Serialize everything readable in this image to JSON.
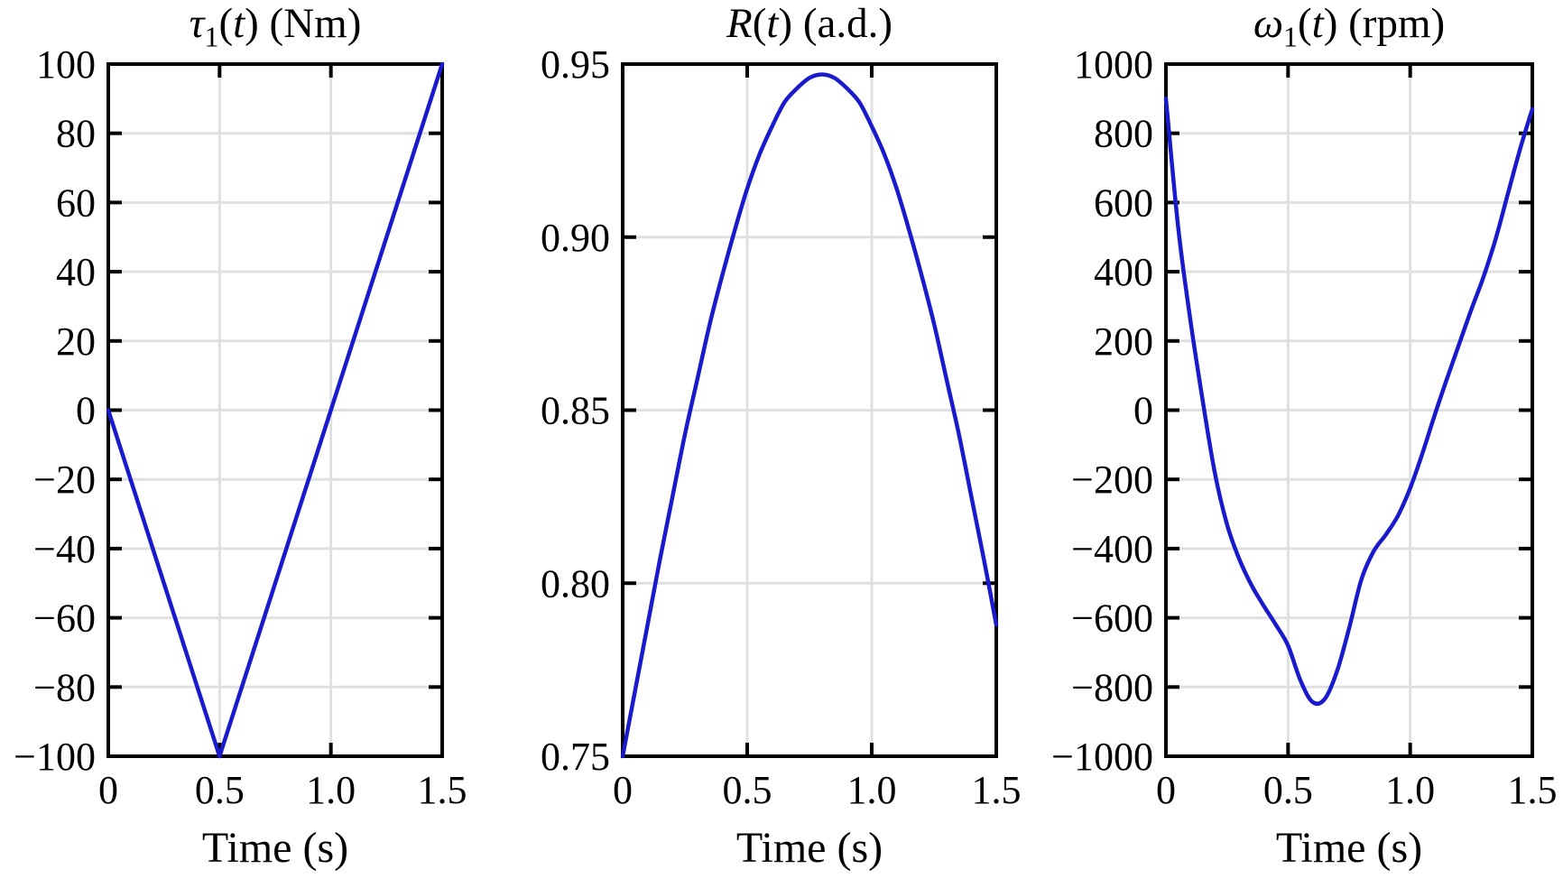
{
  "colors": {
    "line": "#1a1acd",
    "grid": "#e0e0e0",
    "axis": "#000000",
    "text": "#000000",
    "background": "#ffffff"
  },
  "panels": [
    {
      "xlabel": "Time (s)",
      "title_text": "τ1(t) (Nm)",
      "title_parts": [
        {
          "t": "τ",
          "s": "i"
        },
        {
          "t": "1",
          "s": "sub"
        },
        {
          "t": "(",
          "s": "n"
        },
        {
          "t": "t",
          "s": "i"
        },
        {
          "t": ") (Nm)",
          "s": "n"
        }
      ]
    },
    {
      "xlabel": "Time (s)",
      "title_text": "R(t) (a.d.)",
      "title_parts": [
        {
          "t": "R",
          "s": "i"
        },
        {
          "t": "(",
          "s": "n"
        },
        {
          "t": "t",
          "s": "i"
        },
        {
          "t": ") (a.d.)",
          "s": "n"
        }
      ]
    },
    {
      "xlabel": "Time (s)",
      "title_text": "ω1(t) (rpm)",
      "title_parts": [
        {
          "t": "ω",
          "s": "i"
        },
        {
          "t": "1",
          "s": "sub"
        },
        {
          "t": "(",
          "s": "n"
        },
        {
          "t": "t",
          "s": "i"
        },
        {
          "t": ") (rpm)",
          "s": "n"
        }
      ]
    }
  ],
  "chart_data": [
    {
      "type": "line",
      "name": "tau1",
      "title": "τ1(t) (Nm)",
      "xlabel": "Time (s)",
      "ylabel": "",
      "xlim": [
        0,
        1.5
      ],
      "ylim": [
        -100,
        100
      ],
      "grid": true,
      "legend_position": "none",
      "smooth": false,
      "xticks": {
        "values": [
          0,
          0.5,
          1.0,
          1.5
        ],
        "labels": [
          "0",
          "0.5",
          "1.0",
          "1.5"
        ]
      },
      "yticks": {
        "values": [
          100,
          80,
          60,
          40,
          20,
          0,
          -20,
          -40,
          -60,
          -80,
          -100
        ],
        "labels": [
          "100",
          "80",
          "60",
          "40",
          "20",
          "0",
          "−20",
          "−40",
          "−60",
          "−80",
          "−100"
        ]
      },
      "x": [
        0,
        0.5,
        1.5
      ],
      "y": [
        0,
        -100,
        100
      ]
    },
    {
      "type": "line",
      "name": "R",
      "title": "R(t) (a.d.)",
      "xlabel": "Time (s)",
      "ylabel": "",
      "xlim": [
        0,
        1.5
      ],
      "ylim": [
        0.75,
        0.95
      ],
      "grid": true,
      "legend_position": "none",
      "smooth": true,
      "xticks": {
        "values": [
          0,
          0.5,
          1.0,
          1.5
        ],
        "labels": [
          "0",
          "0.5",
          "1.0",
          "1.5"
        ]
      },
      "yticks": {
        "values": [
          0.95,
          0.9,
          0.85,
          0.8,
          0.75
        ],
        "labels": [
          "0.95",
          "0.90",
          "0.85",
          "0.80",
          "0.75"
        ]
      },
      "x": [
        0,
        0.05,
        0.1,
        0.15,
        0.2,
        0.25,
        0.3,
        0.35,
        0.4,
        0.45,
        0.5,
        0.55,
        0.6,
        0.65,
        0.7,
        0.75,
        0.8,
        0.85,
        0.9,
        0.95,
        1.0,
        1.05,
        1.1,
        1.15,
        1.2,
        1.25,
        1.3,
        1.35,
        1.4,
        1.45,
        1.5
      ],
      "y": [
        0.75,
        0.769,
        0.788,
        0.807,
        0.825,
        0.843,
        0.859,
        0.875,
        0.889,
        0.902,
        0.914,
        0.924,
        0.932,
        0.939,
        0.943,
        0.946,
        0.947,
        0.946,
        0.943,
        0.939,
        0.932,
        0.924,
        0.914,
        0.902,
        0.889,
        0.875,
        0.859,
        0.843,
        0.825,
        0.807,
        0.788
      ]
    },
    {
      "type": "line",
      "name": "omega1",
      "title": "ω1(t) (rpm)",
      "xlabel": "Time (s)",
      "ylabel": "",
      "xlim": [
        0,
        1.5
      ],
      "ylim": [
        -1000,
        1000
      ],
      "grid": true,
      "legend_position": "none",
      "smooth": true,
      "xticks": {
        "values": [
          0,
          0.5,
          1.0,
          1.5
        ],
        "labels": [
          "0",
          "0.5",
          "1.0",
          "1.5"
        ]
      },
      "yticks": {
        "values": [
          1000,
          800,
          600,
          400,
          200,
          0,
          -200,
          -400,
          -600,
          -800,
          -1000
        ],
        "labels": [
          "1000",
          "800",
          "600",
          "400",
          "200",
          "0",
          "−200",
          "−400",
          "−600",
          "−800",
          "−1000"
        ]
      },
      "x": [
        0,
        0.05,
        0.1,
        0.15,
        0.2,
        0.25,
        0.3,
        0.35,
        0.4,
        0.45,
        0.5,
        0.55,
        0.6,
        0.65,
        0.7,
        0.75,
        0.8,
        0.85,
        0.9,
        0.95,
        1.0,
        1.05,
        1.1,
        1.15,
        1.2,
        1.25,
        1.3,
        1.35,
        1.4,
        1.45,
        1.5
      ],
      "y": [
        900,
        530,
        260,
        30,
        -180,
        -330,
        -430,
        -505,
        -565,
        -620,
        -680,
        -780,
        -843,
        -835,
        -755,
        -630,
        -490,
        -408,
        -360,
        -305,
        -225,
        -125,
        -15,
        90,
        190,
        290,
        385,
        495,
        625,
        755,
        870
      ]
    }
  ]
}
